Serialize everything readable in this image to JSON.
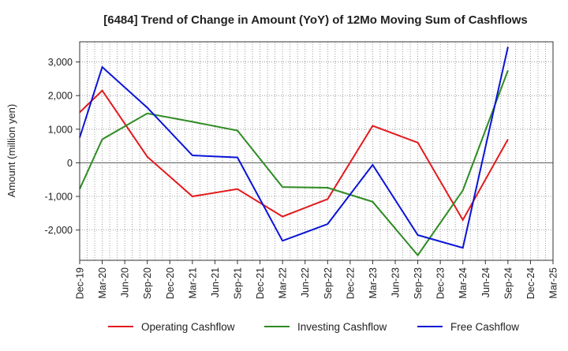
{
  "chart_data": {
    "type": "line",
    "title": "[6484]  Trend of Change in Amount (YoY) of 12Mo Moving Sum of Cashflows",
    "xlabel": "",
    "ylabel": "Amount (million yen)",
    "ylim": [
      -2900,
      3600
    ],
    "yticks": [
      -2000,
      -1000,
      0,
      1000,
      2000,
      3000
    ],
    "ytick_labels": [
      "-2,000",
      "-1,000",
      "0",
      "1,000",
      "2,000",
      "3,000"
    ],
    "categories": [
      "Dec-19",
      "Mar-20",
      "Jun-20",
      "Sep-20",
      "Dec-20",
      "Mar-21",
      "Jun-21",
      "Sep-21",
      "Dec-21",
      "Mar-22",
      "Jun-22",
      "Sep-22",
      "Dec-22",
      "Mar-23",
      "Jun-23",
      "Sep-23",
      "Dec-23",
      "Mar-24",
      "Jun-24",
      "Sep-24",
      "Dec-24",
      "Mar-25"
    ],
    "grid": true,
    "legend_position": "bottom",
    "series": [
      {
        "name": "Operating Cashflow",
        "color": "#e31a1c",
        "values": [
          1500,
          2150,
          null,
          180,
          null,
          -1000,
          null,
          -780,
          null,
          -1600,
          null,
          -1080,
          null,
          1100,
          null,
          600,
          null,
          -1700,
          null,
          700,
          null,
          null
        ]
      },
      {
        "name": "Investing Cashflow",
        "color": "#2e8b22",
        "values": [
          -780,
          700,
          null,
          1470,
          null,
          1220,
          null,
          960,
          null,
          -720,
          null,
          -740,
          null,
          -1160,
          null,
          -2750,
          null,
          -820,
          null,
          2750,
          null,
          null
        ]
      },
      {
        "name": "Free Cashflow",
        "color": "#0a14d6",
        "values": [
          750,
          2850,
          null,
          1640,
          null,
          220,
          null,
          160,
          null,
          -2320,
          null,
          -1820,
          null,
          -60,
          null,
          -2150,
          null,
          -2530,
          null,
          3450,
          null,
          null
        ]
      }
    ]
  }
}
